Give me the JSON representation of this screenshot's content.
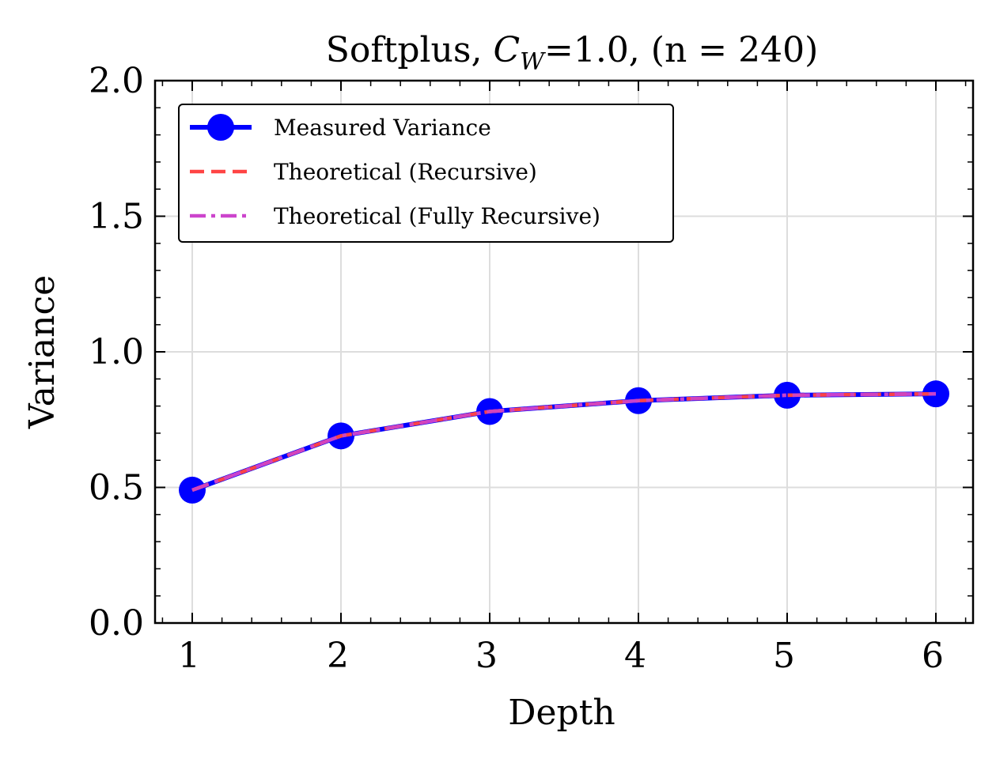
{
  "chart_data": {
    "type": "line",
    "title": "Softplus, C_W=1.0, (n = 240)",
    "title_parts": {
      "prefix": "Softplus, ",
      "symbol": "C",
      "subscript": "W",
      "suffix": "=1.0, (n = 240)"
    },
    "xlabel": "Depth",
    "ylabel": "Variance",
    "x": [
      1,
      2,
      3,
      4,
      5,
      6
    ],
    "xlim": [
      0.75,
      6.25
    ],
    "ylim": [
      0.0,
      2.0
    ],
    "x_ticks": [
      1,
      2,
      3,
      4,
      5,
      6
    ],
    "x_tick_labels": [
      "1",
      "2",
      "3",
      "4",
      "5",
      "6"
    ],
    "y_ticks": [
      0.0,
      0.5,
      1.0,
      1.5,
      2.0
    ],
    "y_tick_labels": [
      "0.0",
      "0.5",
      "1.0",
      "1.5",
      "2.0"
    ],
    "grid": true,
    "legend_position": "upper-left",
    "series": [
      {
        "name": "Measured Variance",
        "values": [
          0.49,
          0.69,
          0.78,
          0.82,
          0.84,
          0.845
        ],
        "color": "#0000ff",
        "style": "solid",
        "marker": "circle"
      },
      {
        "name": "Theoretical (Recursive)",
        "values": [
          0.49,
          0.69,
          0.78,
          0.82,
          0.84,
          0.845
        ],
        "color": "#ff4444",
        "style": "dashed",
        "marker": "none"
      },
      {
        "name": "Theoretical (Fully Recursive)",
        "values": [
          0.49,
          0.69,
          0.78,
          0.82,
          0.84,
          0.845
        ],
        "color": "#cc44cc",
        "style": "dashdot",
        "marker": "none"
      }
    ]
  }
}
